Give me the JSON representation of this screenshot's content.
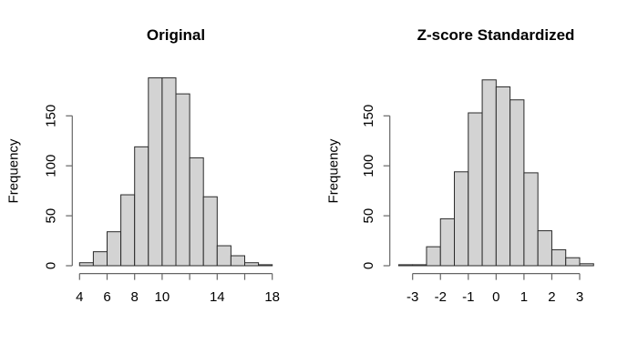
{
  "colors": {
    "background": "#ffffff",
    "bar_fill": "#d3d3d3",
    "bar_stroke": "#2a2a2a",
    "axis": "#666666",
    "text": "#000000"
  },
  "chart_data": [
    {
      "type": "bar",
      "subtype": "histogram",
      "title": "Original",
      "xlabel": "",
      "ylabel": "Frequency",
      "bin_start": 4,
      "bin_width": 1,
      "counts": [
        3,
        14,
        34,
        71,
        119,
        188,
        188,
        172,
        108,
        69,
        20,
        10,
        3,
        1
      ],
      "x_tick_values": [
        4,
        6,
        8,
        10,
        12,
        14,
        16,
        18
      ],
      "x_tick_labels": [
        "4",
        "6",
        "8",
        "10",
        "",
        "14",
        "",
        "18"
      ],
      "y_tick_values": [
        0,
        50,
        100,
        150
      ],
      "y_tick_labels": [
        "0",
        "50",
        "100",
        "150"
      ],
      "xlim": [
        4,
        18
      ],
      "ylim": [
        0,
        188
      ],
      "grid": "off",
      "legend": "none"
    },
    {
      "type": "bar",
      "subtype": "histogram",
      "title": "Z-score Standardized",
      "xlabel": "",
      "ylabel": "Frequency",
      "bin_start": -3.5,
      "bin_width": 0.5,
      "counts": [
        1,
        1,
        19,
        47,
        94,
        153,
        186,
        179,
        166,
        93,
        35,
        16,
        8,
        2
      ],
      "x_tick_values": [
        -3,
        -2,
        -1,
        0,
        1,
        2,
        3
      ],
      "x_tick_labels": [
        "-3",
        "-2",
        "-1",
        "0",
        "1",
        "2",
        "3"
      ],
      "y_tick_values": [
        0,
        50,
        100,
        150
      ],
      "y_tick_labels": [
        "0",
        "50",
        "100",
        "150"
      ],
      "xlim": [
        -3.5,
        3.5
      ],
      "ylim": [
        0,
        186
      ],
      "grid": "off",
      "legend": "none"
    }
  ]
}
